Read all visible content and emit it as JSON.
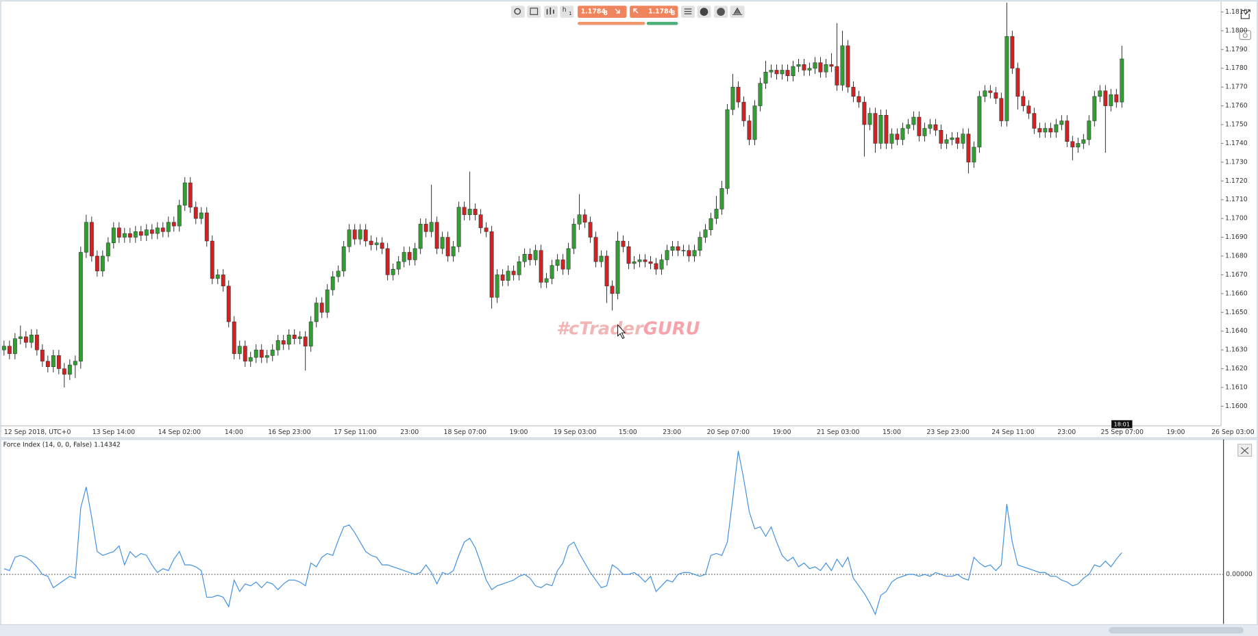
{
  "toolbar": {
    "timeframe_unit": "h",
    "timeframe_count": "1",
    "sell_price": "1.1784",
    "sell_pipette": "8",
    "buy_price": "1.1784",
    "buy_pipette": "8"
  },
  "watermark": {
    "prefix": "#cTrader",
    "suffix": "GURU"
  },
  "chart_data": [
    {
      "type": "candlestick",
      "up_color": "#2ea02e",
      "down_color": "#d42020",
      "cursor_time": "18:01",
      "x_labels": [
        "12 Sep 2018, UTC+0",
        "13 Sep 14:00",
        "14 Sep 02:00",
        "14:00",
        "16 Sep 23:00",
        "17 Sep 11:00",
        "23:00",
        "18 Sep 07:00",
        "19:00",
        "19 Sep 03:00",
        "15:00",
        "23:00",
        "20 Sep 07:00",
        "19:00",
        "21 Sep 03:00",
        "15:00",
        "23 Sep 23:00",
        "24 Sep 11:00",
        "23:00",
        "25 Sep 07:00",
        "19:00",
        "26 Sep 03:00"
      ],
      "ylim": [
        1.159,
        1.1815
      ],
      "yticks": [
        {
          "value": 1.16,
          "label": "1.1600"
        },
        {
          "value": 1.161,
          "label": "1.1610"
        },
        {
          "value": 1.162,
          "label": "1.1620"
        },
        {
          "value": 1.163,
          "label": "1.1630"
        },
        {
          "value": 1.164,
          "label": "1.1640"
        },
        {
          "value": 1.165,
          "label": "1.1650"
        },
        {
          "value": 1.166,
          "label": "1.1660"
        },
        {
          "value": 1.167,
          "label": "1.1670"
        },
        {
          "value": 1.168,
          "label": "1.1680"
        },
        {
          "value": 1.169,
          "label": "1.1690"
        },
        {
          "value": 1.17,
          "label": "1.1700"
        },
        {
          "value": 1.171,
          "label": "1.1710"
        },
        {
          "value": 1.172,
          "label": "1.1720"
        },
        {
          "value": 1.173,
          "label": "1.1730"
        },
        {
          "value": 1.174,
          "label": "1.1740"
        },
        {
          "value": 1.175,
          "label": "1.1750"
        },
        {
          "value": 1.176,
          "label": "1.1760"
        },
        {
          "value": 1.177,
          "label": "1.1770"
        },
        {
          "value": 1.178,
          "label": "1.1780"
        },
        {
          "value": 1.179,
          "label": "1.1790"
        },
        {
          "value": 1.18,
          "label": "1.1800"
        },
        {
          "value": 1.181,
          "label": "1.1810"
        }
      ],
      "open": [
        1.163,
        1.1632,
        1.1628,
        1.1636,
        1.1637,
        1.1634,
        1.1638,
        1.163,
        1.1624,
        1.1621,
        1.1627,
        1.162,
        1.1617,
        1.1622,
        1.1624,
        1.1682,
        1.1698,
        1.168,
        1.1672,
        1.168,
        1.1687,
        1.1695,
        1.169,
        1.1692,
        1.169,
        1.1693,
        1.1691,
        1.1694,
        1.1692,
        1.1695,
        1.1693,
        1.1698,
        1.1696,
        1.1707,
        1.1719,
        1.1706,
        1.17,
        1.1703,
        1.1688,
        1.1668,
        1.167,
        1.1664,
        1.1645,
        1.1628,
        1.1632,
        1.1624,
        1.1626,
        1.163,
        1.1626,
        1.1627,
        1.163,
        1.1635,
        1.1633,
        1.1638,
        1.1636,
        1.1637,
        1.1632,
        1.1645,
        1.1655,
        1.165,
        1.1662,
        1.1669,
        1.1672,
        1.1685,
        1.1694,
        1.1689,
        1.1694,
        1.1688,
        1.1686,
        1.1687,
        1.1684,
        1.167,
        1.1673,
        1.1677,
        1.1682,
        1.1678,
        1.1684,
        1.1697,
        1.1693,
        1.1698,
        1.1684,
        1.169,
        1.168,
        1.1685,
        1.1706,
        1.1702,
        1.1705,
        1.1702,
        1.1695,
        1.1693,
        1.1658,
        1.167,
        1.1667,
        1.1672,
        1.167,
        1.1677,
        1.1681,
        1.1678,
        1.1683,
        1.1666,
        1.1668,
        1.1675,
        1.1678,
        1.1673,
        1.1684,
        1.1697,
        1.1702,
        1.1698,
        1.169,
        1.1677,
        1.168,
        1.1664,
        1.166,
        1.1688,
        1.1685,
        1.1676,
        1.1677,
        1.1678,
        1.1677,
        1.1676,
        1.1673,
        1.1678,
        1.1683,
        1.1685,
        1.1683,
        1.1683,
        1.168,
        1.1683,
        1.169,
        1.1694,
        1.17,
        1.1705,
        1.1716,
        1.1758,
        1.177,
        1.1762,
        1.1752,
        1.1742,
        1.176,
        1.1772,
        1.1778,
        1.1779,
        1.1777,
        1.1779,
        1.1776,
        1.1781,
        1.1782,
        1.1779,
        1.178,
        1.1783,
        1.1778,
        1.1782,
        1.1781,
        1.1771,
        1.1792,
        1.177,
        1.1765,
        1.1762,
        1.175,
        1.1756,
        1.174,
        1.1755,
        1.174,
        1.1745,
        1.1742,
        1.1748,
        1.175,
        1.1754,
        1.1744,
        1.1748,
        1.175,
        1.1747,
        1.174,
        1.1742,
        1.1743,
        1.174,
        1.1745,
        1.173,
        1.1738,
        1.1765,
        1.1768,
        1.1767,
        1.1764,
        1.1752,
        1.1797,
        1.178,
        1.1765,
        1.176,
        1.1756,
        1.1748,
        1.1746,
        1.1748,
        1.1746,
        1.175,
        1.1752,
        1.1741,
        1.1738,
        1.174,
        1.1742,
        1.1752,
        1.1765,
        1.1768,
        1.176,
        1.1766,
        1.1762
      ],
      "high": [
        1.1635,
        1.1635,
        1.1639,
        1.1643,
        1.164,
        1.1641,
        1.1641,
        1.1633,
        1.1627,
        1.163,
        1.163,
        1.1623,
        1.1625,
        1.1627,
        1.1685,
        1.1702,
        1.1701,
        1.1683,
        1.1683,
        1.169,
        1.1698,
        1.1698,
        1.1695,
        1.1695,
        1.1696,
        1.1696,
        1.1697,
        1.1697,
        1.1698,
        1.1698,
        1.1701,
        1.1701,
        1.171,
        1.1722,
        1.1722,
        1.1709,
        1.1706,
        1.1706,
        1.1691,
        1.1673,
        1.1673,
        1.1667,
        1.1648,
        1.1635,
        1.1635,
        1.1629,
        1.1633,
        1.1633,
        1.163,
        1.1633,
        1.1638,
        1.1638,
        1.1641,
        1.1641,
        1.164,
        1.164,
        1.1648,
        1.1658,
        1.1658,
        1.1665,
        1.1672,
        1.1675,
        1.1688,
        1.1697,
        1.1697,
        1.1697,
        1.1697,
        1.1691,
        1.169,
        1.169,
        1.1687,
        1.1676,
        1.168,
        1.1685,
        1.1685,
        1.1687,
        1.17,
        1.17,
        1.1718,
        1.1701,
        1.1693,
        1.1693,
        1.1688,
        1.1709,
        1.1709,
        1.1725,
        1.1708,
        1.1705,
        1.1698,
        1.1696,
        1.1673,
        1.1673,
        1.1675,
        1.1675,
        1.168,
        1.1684,
        1.1684,
        1.1686,
        1.1686,
        1.1671,
        1.1678,
        1.1681,
        1.1681,
        1.1687,
        1.17,
        1.1713,
        1.1705,
        1.1701,
        1.1693,
        1.1683,
        1.1683,
        1.1667,
        1.1693,
        1.1691,
        1.1688,
        1.168,
        1.1681,
        1.1681,
        1.168,
        1.1679,
        1.1681,
        1.1686,
        1.1688,
        1.1688,
        1.1686,
        1.1686,
        1.1686,
        1.1693,
        1.1697,
        1.1703,
        1.1712,
        1.172,
        1.1761,
        1.1777,
        1.1773,
        1.1765,
        1.1755,
        1.1763,
        1.1775,
        1.1784,
        1.1782,
        1.1782,
        1.1782,
        1.1782,
        1.1784,
        1.1785,
        1.1785,
        1.1783,
        1.1786,
        1.1786,
        1.1785,
        1.1788,
        1.1804,
        1.18,
        1.1795,
        1.1773,
        1.1768,
        1.1765,
        1.1759,
        1.1759,
        1.1758,
        1.1758,
        1.1748,
        1.1748,
        1.1751,
        1.1753,
        1.1757,
        1.1757,
        1.1751,
        1.1753,
        1.1753,
        1.175,
        1.1745,
        1.1746,
        1.1746,
        1.1748,
        1.1748,
        1.1741,
        1.1768,
        1.1771,
        1.1771,
        1.177,
        1.1767,
        1.1815,
        1.18,
        1.1783,
        1.1768,
        1.1763,
        1.1759,
        1.1751,
        1.1751,
        1.1751,
        1.1753,
        1.1755,
        1.1755,
        1.1744,
        1.1743,
        1.1745,
        1.1755,
        1.1768,
        1.1771,
        1.1771,
        1.1769,
        1.1769,
        1.1792
      ],
      "low": [
        1.1627,
        1.1625,
        1.1625,
        1.1633,
        1.1631,
        1.1631,
        1.1627,
        1.1621,
        1.1618,
        1.1618,
        1.1617,
        1.161,
        1.1614,
        1.1615,
        1.162,
        1.1679,
        1.1677,
        1.1669,
        1.1669,
        1.1677,
        1.1684,
        1.1687,
        1.1687,
        1.1687,
        1.1687,
        1.1688,
        1.1688,
        1.1689,
        1.1689,
        1.169,
        1.169,
        1.1693,
        1.1693,
        1.1704,
        1.1703,
        1.1697,
        1.1697,
        1.1685,
        1.1665,
        1.1665,
        1.1661,
        1.1642,
        1.1625,
        1.1625,
        1.1621,
        1.1621,
        1.1623,
        1.1623,
        1.1623,
        1.1624,
        1.1627,
        1.163,
        1.163,
        1.1633,
        1.1633,
        1.1619,
        1.1629,
        1.1642,
        1.1647,
        1.1647,
        1.1659,
        1.1666,
        1.1669,
        1.1682,
        1.1686,
        1.1686,
        1.1685,
        1.1683,
        1.1683,
        1.1681,
        1.1667,
        1.1667,
        1.167,
        1.1674,
        1.1675,
        1.1675,
        1.1681,
        1.169,
        1.169,
        1.1681,
        1.1681,
        1.1677,
        1.1677,
        1.1682,
        1.1699,
        1.1699,
        1.1699,
        1.1692,
        1.169,
        1.1652,
        1.1655,
        1.1664,
        1.1664,
        1.1667,
        1.1667,
        1.1674,
        1.1675,
        1.1675,
        1.1663,
        1.1663,
        1.1665,
        1.1672,
        1.167,
        1.167,
        1.1681,
        1.1694,
        1.1695,
        1.1687,
        1.1674,
        1.1674,
        1.1655,
        1.1651,
        1.1657,
        1.1682,
        1.1673,
        1.1673,
        1.1674,
        1.1674,
        1.1673,
        1.167,
        1.167,
        1.1675,
        1.168,
        1.168,
        1.168,
        1.1677,
        1.1677,
        1.168,
        1.1687,
        1.1691,
        1.1697,
        1.1702,
        1.1713,
        1.1755,
        1.1759,
        1.1749,
        1.1739,
        1.1739,
        1.1757,
        1.1769,
        1.1775,
        1.1774,
        1.1774,
        1.1773,
        1.1773,
        1.1778,
        1.1776,
        1.1776,
        1.1777,
        1.1775,
        1.1775,
        1.1778,
        1.1768,
        1.1768,
        1.1767,
        1.1762,
        1.1759,
        1.1733,
        1.1747,
        1.1735,
        1.1737,
        1.1737,
        1.1737,
        1.1739,
        1.1739,
        1.1745,
        1.1747,
        1.1741,
        1.1741,
        1.1745,
        1.1744,
        1.1737,
        1.1737,
        1.1739,
        1.1737,
        1.1737,
        1.1724,
        1.1727,
        1.1735,
        1.1762,
        1.1764,
        1.1761,
        1.1749,
        1.1749,
        1.1777,
        1.1758,
        1.1757,
        1.1753,
        1.1745,
        1.1743,
        1.1743,
        1.1743,
        1.1743,
        1.1747,
        1.1738,
        1.1731,
        1.1735,
        1.1737,
        1.1739,
        1.1749,
        1.1762,
        1.1735,
        1.1757,
        1.1759,
        1.1759
      ],
      "close": [
        1.1632,
        1.1628,
        1.1636,
        1.1637,
        1.1634,
        1.1638,
        1.163,
        1.1624,
        1.1621,
        1.1627,
        1.162,
        1.1617,
        1.1622,
        1.1624,
        1.1682,
        1.1698,
        1.168,
        1.1672,
        1.168,
        1.1687,
        1.1695,
        1.169,
        1.1692,
        1.169,
        1.1693,
        1.1691,
        1.1694,
        1.1692,
        1.1695,
        1.1693,
        1.1698,
        1.1696,
        1.1707,
        1.1719,
        1.1706,
        1.17,
        1.1703,
        1.1688,
        1.1668,
        1.167,
        1.1664,
        1.1645,
        1.1628,
        1.1632,
        1.1624,
        1.1626,
        1.163,
        1.1626,
        1.1627,
        1.163,
        1.1635,
        1.1633,
        1.1638,
        1.1636,
        1.1637,
        1.1632,
        1.1645,
        1.1655,
        1.165,
        1.1662,
        1.1669,
        1.1672,
        1.1685,
        1.1694,
        1.1689,
        1.1694,
        1.1688,
        1.1686,
        1.1687,
        1.1684,
        1.167,
        1.1673,
        1.1677,
        1.1682,
        1.1678,
        1.1684,
        1.1697,
        1.1693,
        1.1698,
        1.1684,
        1.169,
        1.168,
        1.1685,
        1.1706,
        1.1702,
        1.1705,
        1.1702,
        1.1695,
        1.1693,
        1.1658,
        1.167,
        1.1667,
        1.1672,
        1.167,
        1.1677,
        1.1681,
        1.1678,
        1.1683,
        1.1666,
        1.1668,
        1.1675,
        1.1678,
        1.1673,
        1.1684,
        1.1697,
        1.1702,
        1.1698,
        1.169,
        1.1677,
        1.168,
        1.1664,
        1.166,
        1.1688,
        1.1685,
        1.1676,
        1.1677,
        1.1678,
        1.1677,
        1.1676,
        1.1673,
        1.1678,
        1.1683,
        1.1685,
        1.1683,
        1.1683,
        1.168,
        1.1683,
        1.169,
        1.1694,
        1.17,
        1.1705,
        1.1716,
        1.1758,
        1.177,
        1.1762,
        1.1752,
        1.1742,
        1.176,
        1.1772,
        1.1778,
        1.1779,
        1.1777,
        1.1779,
        1.1776,
        1.1781,
        1.1782,
        1.1779,
        1.178,
        1.1783,
        1.1778,
        1.1782,
        1.1781,
        1.1771,
        1.1792,
        1.177,
        1.1765,
        1.1762,
        1.175,
        1.1756,
        1.174,
        1.1755,
        1.174,
        1.1745,
        1.1742,
        1.1748,
        1.175,
        1.1754,
        1.1744,
        1.1748,
        1.175,
        1.1747,
        1.174,
        1.1742,
        1.1743,
        1.174,
        1.1745,
        1.173,
        1.1738,
        1.1765,
        1.1768,
        1.1767,
        1.1764,
        1.1752,
        1.1797,
        1.178,
        1.1765,
        1.176,
        1.1756,
        1.1748,
        1.1746,
        1.1748,
        1.1746,
        1.175,
        1.1752,
        1.1741,
        1.1738,
        1.174,
        1.1742,
        1.1752,
        1.1765,
        1.1768,
        1.176,
        1.1766,
        1.1762,
        1.1785
      ]
    },
    {
      "type": "line",
      "title": "Force Index (14, 0, 0, False) 1.14342",
      "color": "#3d8fe0",
      "ylim": [
        -2.6,
        7.1
      ],
      "yticks": [
        {
          "value": 0,
          "label": "0.00000"
        }
      ],
      "zero_line": "dotted",
      "values": [
        0.3,
        0.2,
        0.9,
        1.0,
        0.9,
        0.7,
        0.4,
        0.0,
        -0.1,
        -0.7,
        -0.5,
        -0.3,
        -0.1,
        -0.2,
        3.5,
        4.6,
        3.0,
        1.2,
        1.0,
        1.1,
        1.2,
        1.5,
        0.5,
        1.2,
        0.9,
        1.1,
        1.0,
        0.5,
        0.1,
        0.3,
        0.2,
        0.8,
        1.2,
        0.5,
        0.5,
        0.4,
        0.2,
        -1.2,
        -1.2,
        -1.1,
        -1.2,
        -1.7,
        -0.3,
        -0.9,
        -0.5,
        -0.6,
        -0.4,
        -0.7,
        -0.4,
        -0.5,
        -0.8,
        -0.5,
        -0.3,
        -0.3,
        -0.4,
        -0.6,
        0.6,
        0.4,
        0.9,
        1.1,
        1.0,
        1.8,
        2.5,
        2.6,
        2.2,
        1.7,
        1.2,
        1.0,
        0.9,
        0.5,
        0.5,
        0.4,
        0.3,
        0.2,
        0.1,
        0.0,
        0.1,
        0.5,
        0.1,
        -0.5,
        0.1,
        0.0,
        0.2,
        1.0,
        1.7,
        1.9,
        1.4,
        0.6,
        -0.3,
        -0.8,
        -0.6,
        -0.5,
        -0.4,
        -0.3,
        -0.1,
        0.0,
        -0.2,
        -0.6,
        -0.7,
        -0.5,
        -0.6,
        0.2,
        0.6,
        1.5,
        1.7,
        1.1,
        0.6,
        0.1,
        -0.3,
        -0.7,
        -0.6,
        0.5,
        0.3,
        0.0,
        0.0,
        0.1,
        -0.1,
        -0.4,
        -0.1,
        -0.9,
        -0.6,
        -0.3,
        -0.4,
        0.0,
        0.1,
        0.1,
        0.0,
        -0.1,
        0.0,
        1.0,
        1.1,
        1.0,
        1.7,
        4.0,
        6.5,
        5.0,
        3.3,
        2.4,
        2.5,
        2.0,
        2.5,
        1.7,
        1.0,
        0.7,
        0.9,
        0.4,
        0.6,
        0.3,
        0.4,
        0.2,
        0.6,
        0.2,
        0.8,
        0.4,
        0.9,
        -0.2,
        -0.6,
        -1.0,
        -1.5,
        -2.1,
        -1.1,
        -0.9,
        -0.4,
        -0.2,
        -0.1,
        0.0,
        0.0,
        -0.1,
        0.0,
        -0.1,
        0.1,
        0.0,
        -0.1,
        -0.1,
        0.0,
        -0.2,
        -0.3,
        0.9,
        0.6,
        0.4,
        0.5,
        0.2,
        0.5,
        3.7,
        1.7,
        0.5,
        0.4,
        0.3,
        0.2,
        0.1,
        0.1,
        -0.1,
        -0.1,
        -0.3,
        -0.4,
        -0.6,
        -0.5,
        -0.2,
        0.0,
        0.5,
        0.4,
        0.7,
        0.4,
        0.8,
        1.14342
      ]
    }
  ]
}
